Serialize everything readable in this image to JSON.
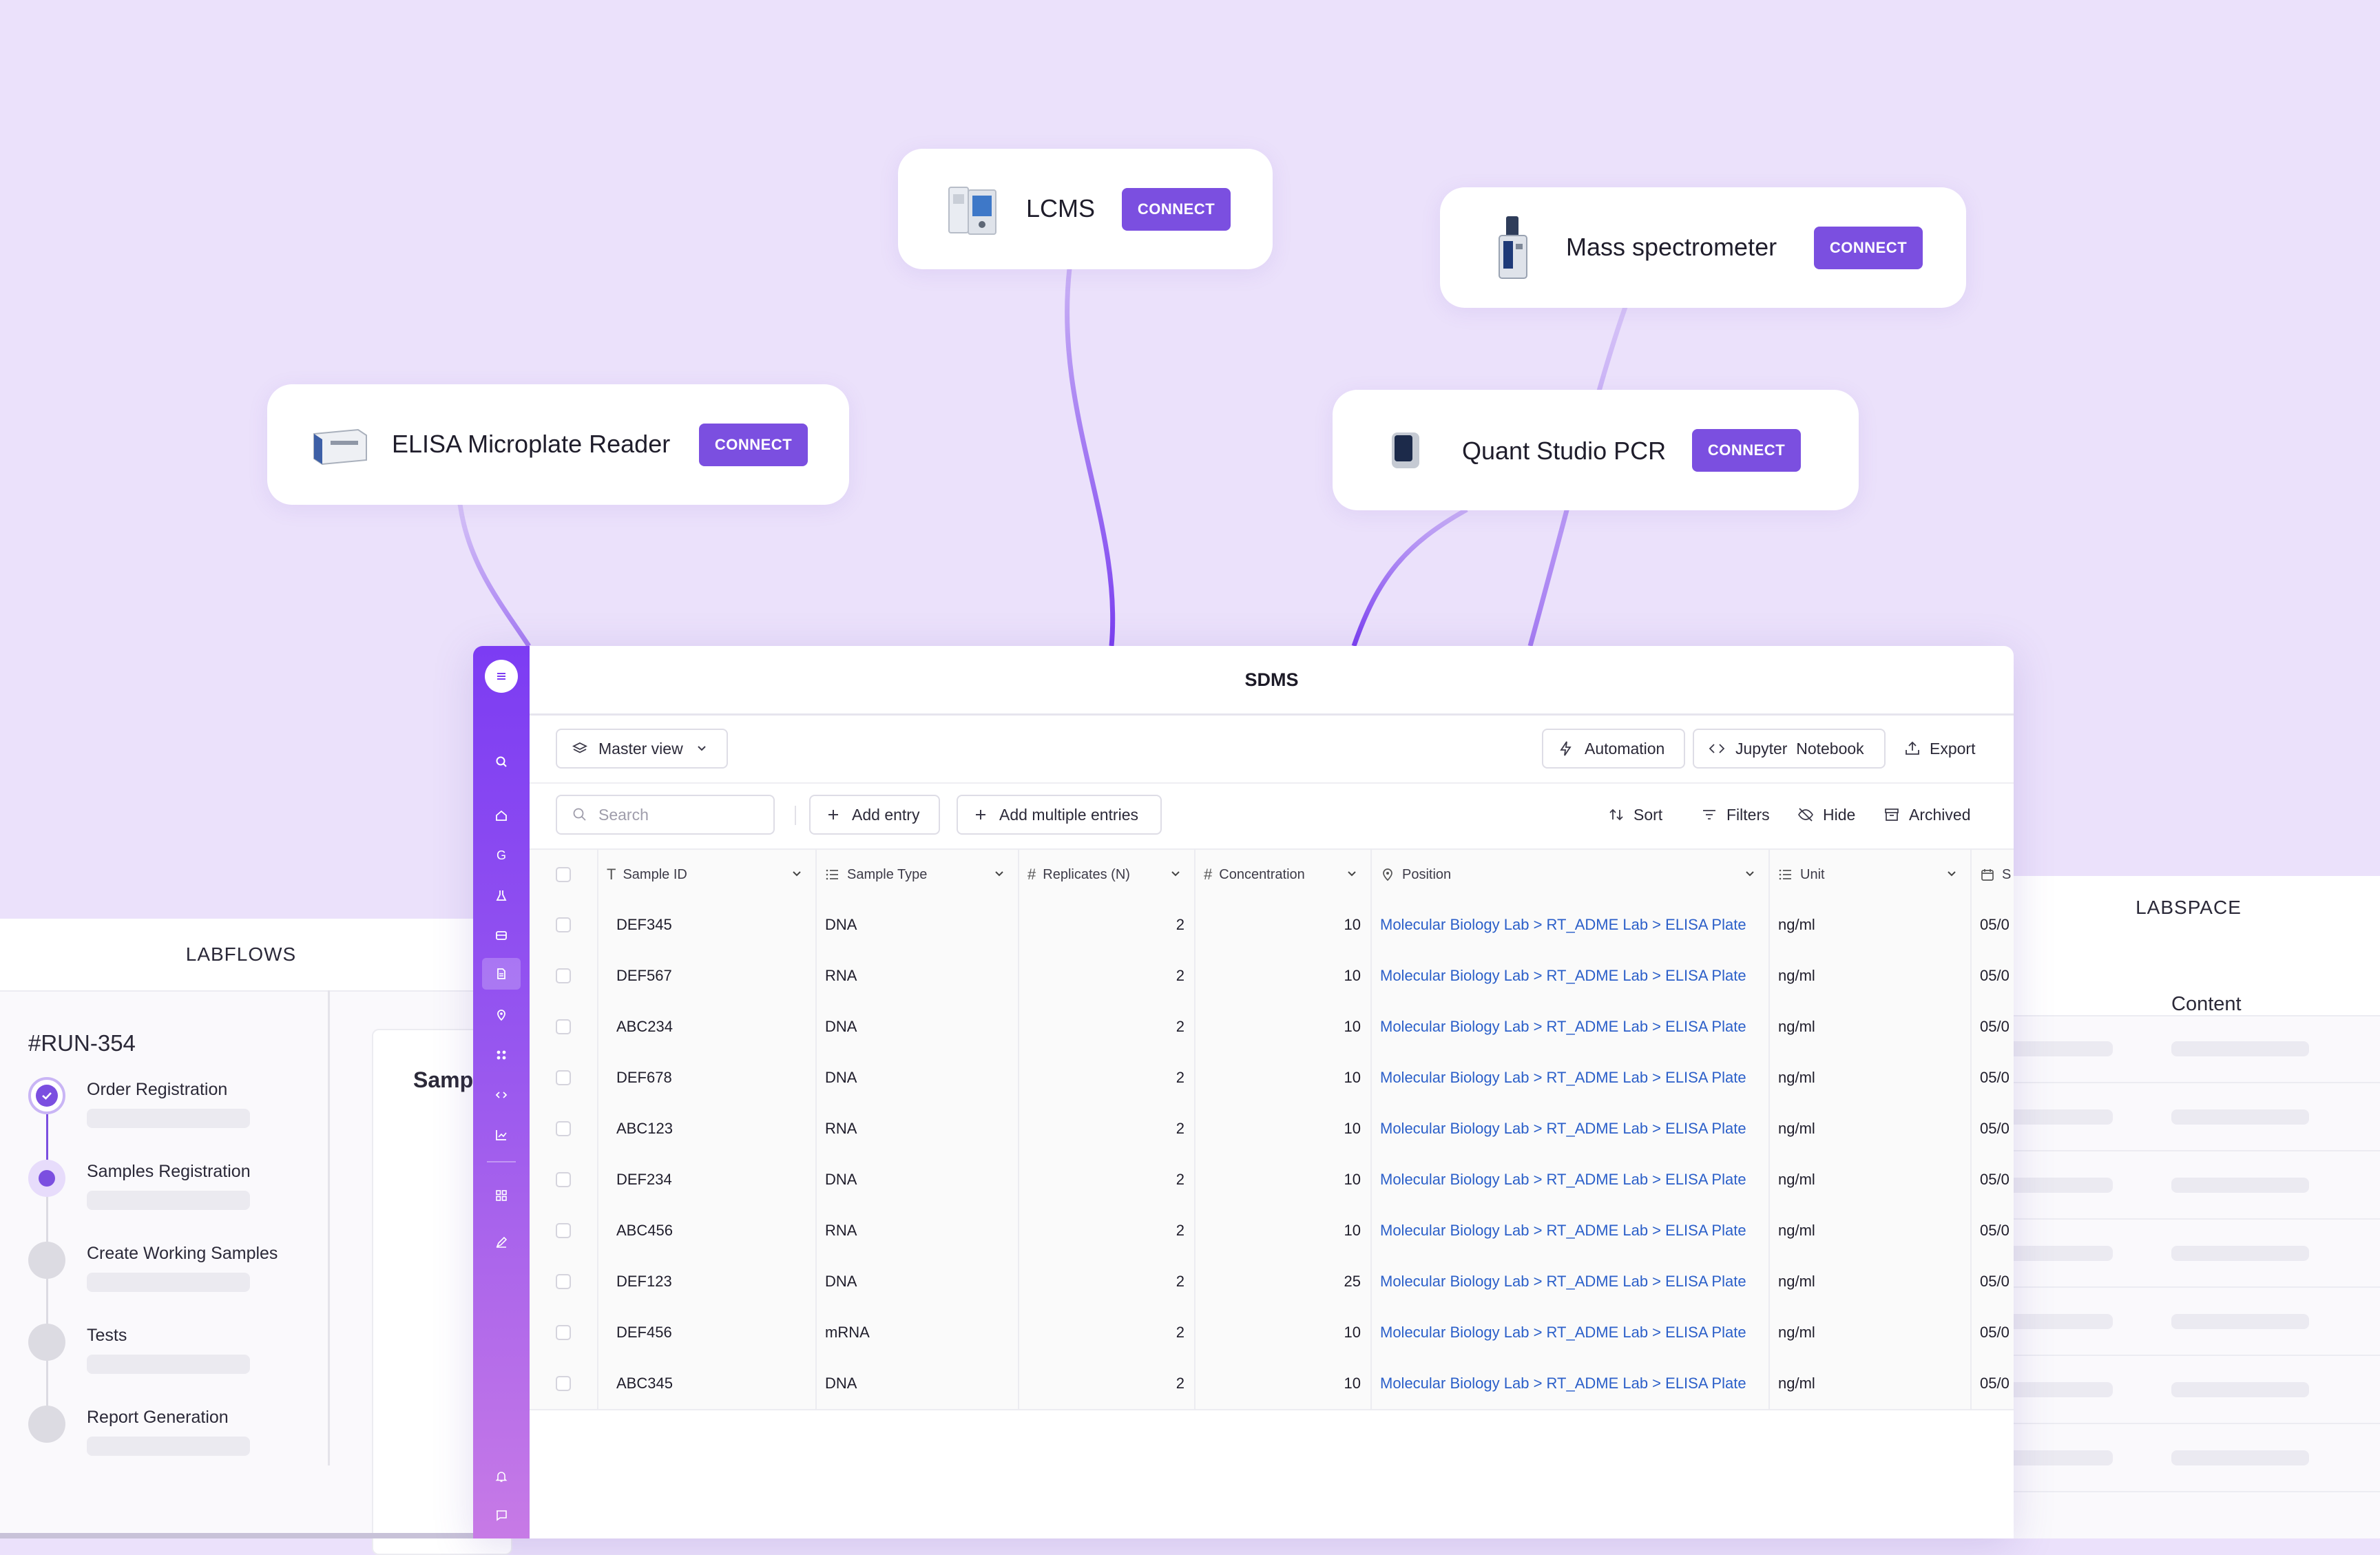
{
  "devices": [
    {
      "name": "LCMS",
      "button": "CONNECT",
      "icon": "lcms-instrument-icon"
    },
    {
      "name": "Mass spectrometer",
      "button": "CONNECT",
      "icon": "mass-spectrometer-icon"
    },
    {
      "name": "ELISA Microplate Reader",
      "button": "CONNECT",
      "icon": "microplate-reader-icon"
    },
    {
      "name": "Quant Studio PCR",
      "button": "CONNECT",
      "icon": "pcr-machine-icon"
    }
  ],
  "labflows": {
    "title": "LABFLOWS",
    "run_id": "#RUN-354",
    "partial_heading": "Samp",
    "steps": [
      "Order Registration",
      "Samples Registration",
      "Create Working Samples",
      "Tests",
      "Report Generation"
    ]
  },
  "labspace": {
    "title": "LABSPACE",
    "content_label": "Content"
  },
  "sdms": {
    "title": "SDMS",
    "view_select": "Master view",
    "automation": "Automation",
    "jupyter": "Jupyter  Notebook",
    "export": "Export",
    "search_placeholder": "Search",
    "add_entry": "Add entry",
    "add_multiple": "Add multiple entries",
    "sort": "Sort",
    "filters": "Filters",
    "hide": "Hide",
    "archived": "Archived",
    "columns": [
      "Sample ID",
      "Sample Type",
      "Replicates (N)",
      "Concentration",
      "Position",
      "Unit",
      "S"
    ],
    "rows": [
      {
        "id": "DEF345",
        "type": "DNA",
        "replicates": "2",
        "concentration": "10",
        "position": "Molecular Biology Lab > RT_ADME Lab > ELISA Plate",
        "unit": "ng/ml",
        "date": "05/0"
      },
      {
        "id": "DEF567",
        "type": "RNA",
        "replicates": "2",
        "concentration": "10",
        "position": "Molecular Biology Lab > RT_ADME Lab > ELISA Plate",
        "unit": "ng/ml",
        "date": "05/0"
      },
      {
        "id": "ABC234",
        "type": "DNA",
        "replicates": "2",
        "concentration": "10",
        "position": "Molecular Biology Lab > RT_ADME Lab > ELISA Plate",
        "unit": "ng/ml",
        "date": "05/0"
      },
      {
        "id": "DEF678",
        "type": "DNA",
        "replicates": "2",
        "concentration": "10",
        "position": "Molecular Biology Lab > RT_ADME Lab > ELISA Plate",
        "unit": "ng/ml",
        "date": "05/0"
      },
      {
        "id": "ABC123",
        "type": "RNA",
        "replicates": "2",
        "concentration": "10",
        "position": "Molecular Biology Lab > RT_ADME Lab > ELISA Plate",
        "unit": "ng/ml",
        "date": "05/0"
      },
      {
        "id": "DEF234",
        "type": "DNA",
        "replicates": "2",
        "concentration": "10",
        "position": "Molecular Biology Lab > RT_ADME Lab > ELISA Plate",
        "unit": "ng/ml",
        "date": "05/0"
      },
      {
        "id": "ABC456",
        "type": "RNA",
        "replicates": "2",
        "concentration": "10",
        "position": "Molecular Biology Lab > RT_ADME Lab > ELISA Plate",
        "unit": "ng/ml",
        "date": "05/0"
      },
      {
        "id": "DEF123",
        "type": "DNA",
        "replicates": "2",
        "concentration": "25",
        "position": "Molecular Biology Lab > RT_ADME Lab > ELISA Plate",
        "unit": "ng/ml",
        "date": "05/0"
      },
      {
        "id": "DEF456",
        "type": "mRNA",
        "replicates": "2",
        "concentration": "10",
        "position": "Molecular Biology Lab > RT_ADME Lab > ELISA Plate",
        "unit": "ng/ml",
        "date": "05/0"
      },
      {
        "id": "ABC345",
        "type": "DNA",
        "replicates": "2",
        "concentration": "10",
        "position": "Molecular Biology Lab > RT_ADME Lab > ELISA Plate",
        "unit": "ng/ml",
        "date": "05/0"
      }
    ]
  },
  "sidebar_icons": [
    "menu-icon",
    "search-icon",
    "home-icon",
    "g-icon",
    "flask-icon",
    "inbox-icon",
    "document-icon",
    "location-icon",
    "apps-icon",
    "code-icon",
    "chart-icon",
    "grid-icon",
    "pen-icon",
    "bell-icon",
    "chat-icon"
  ],
  "colors": {
    "accent": "#7b4fe0",
    "background": "#ebe1fb",
    "link": "#2b5fc9"
  }
}
